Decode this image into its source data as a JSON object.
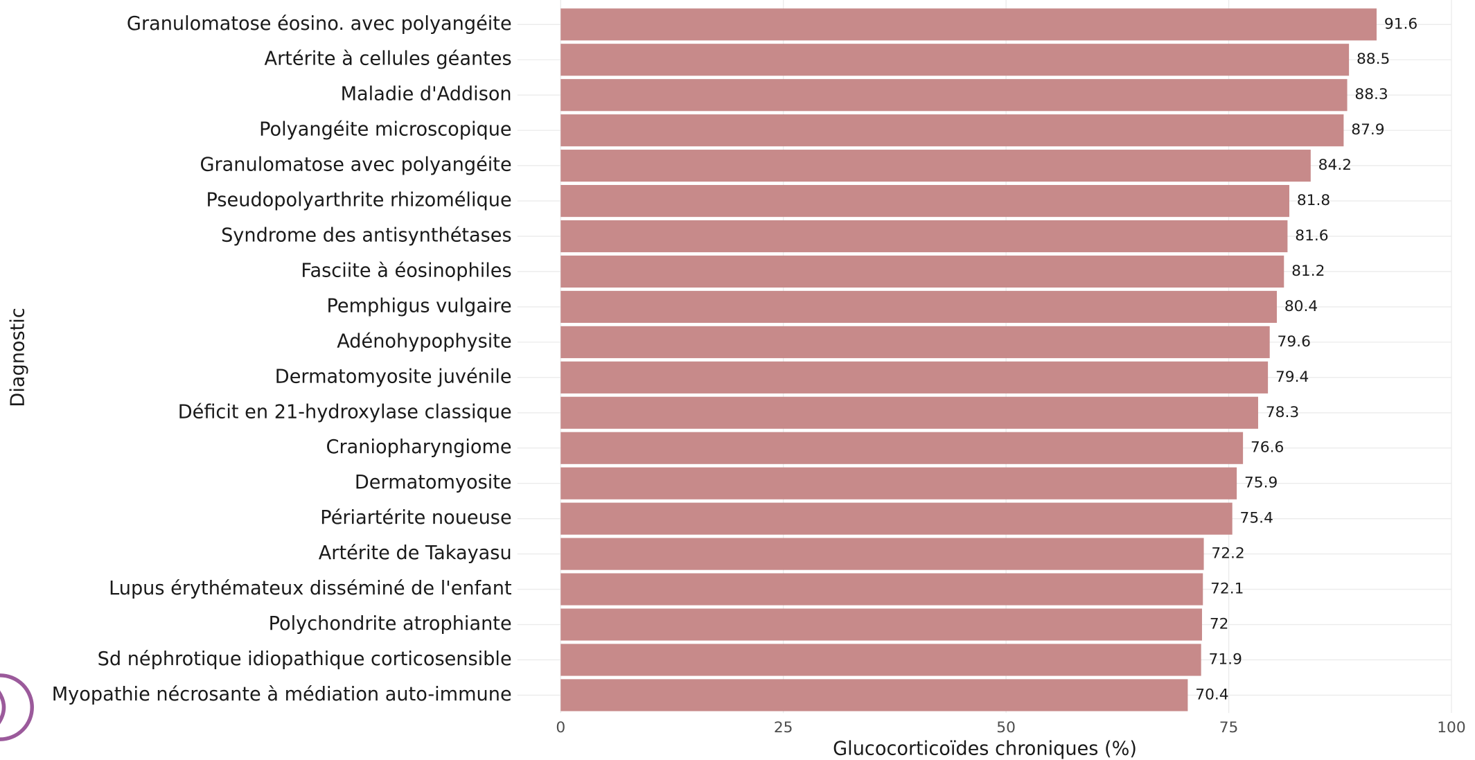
{
  "chart_data": {
    "type": "bar",
    "x_label": "Glucocorticoïdes chroniques (%)",
    "y_label": "Diagnostic",
    "categories": [
      "Granulomatose éosino. avec polyangéite",
      "Artérite à cellules géantes",
      "Maladie d'Addison",
      "Polyangéite microscopique",
      "Granulomatose avec polyangéite",
      "Pseudopolyarthrite rhizomélique",
      "Syndrome des antisynthétases",
      "Fasciite à éosinophiles",
      "Pemphigus vulgaire",
      "Adénohypophysite",
      "Dermatomyosite juvénile",
      "Déficit en 21-hydroxylase classique",
      "Craniopharyngiome",
      "Dermatomyosite",
      "Périartérite noueuse",
      "Artérite de Takayasu",
      "Lupus érythémateux disséminé de l'enfant",
      "Polychondrite atrophiante",
      "Sd néphrotique idiopathique corticosensible",
      "Myopathie nécrosante à médiation auto-immune"
    ],
    "values": [
      91.6,
      88.5,
      88.3,
      87.9,
      84.2,
      81.8,
      81.6,
      81.2,
      80.4,
      79.6,
      79.4,
      78.3,
      76.6,
      75.9,
      75.4,
      72.2,
      72.1,
      72,
      71.9,
      70.4
    ],
    "color": "#c78a8a",
    "xlim": [
      0,
      100
    ],
    "xticks": [
      0,
      25,
      50,
      75,
      100
    ],
    "grid": true
  }
}
